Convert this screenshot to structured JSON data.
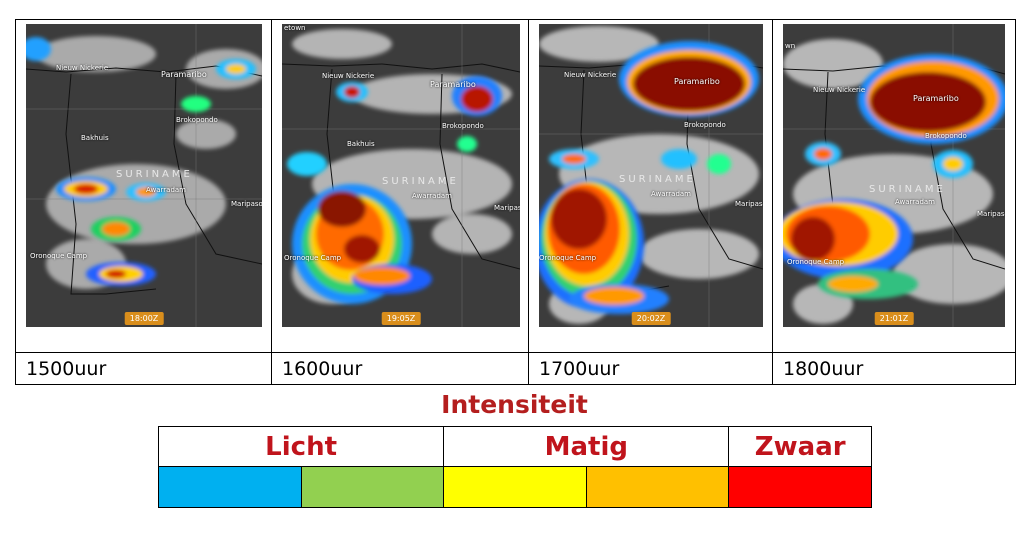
{
  "frames": [
    {
      "label": "1500uur",
      "time_badge": "18:00Z",
      "places": {
        "nieuw_nickerie": "Nieuw Nickerie",
        "paramaribo": "Paramaribo",
        "brokopondo": "Brokopondo",
        "bakhuis": "Bakhuis",
        "suriname": "SURINAME",
        "awarradam": "Awarradam",
        "oronoque": "Oronoque Camp",
        "maripasoula": ""
      }
    },
    {
      "label": "1600uur",
      "time_badge": "19:05Z",
      "places": {
        "nieuw_nickerie": "Nieuw Nickerie",
        "paramaribo": "Paramaribo",
        "brokopondo": "Brokopondo",
        "bakhuis": "Bakhuis",
        "suriname": "SURINAME",
        "awarradam": "Awarradam",
        "oronoque": "Oronoque Camp",
        "maripasoula": ""
      }
    },
    {
      "label": "1700uur",
      "time_badge": "20:02Z",
      "places": {
        "nieuw_nickerie": "Nieuw Nickerie",
        "paramaribo": "Paramaribo",
        "brokopondo": "Brokopondo",
        "bakhuis": "",
        "suriname": "SURINAME",
        "awarradam": "Awarradam",
        "oronoque": "Oronoque Camp",
        "maripasoula": "Maripasoula"
      }
    },
    {
      "label": "1800uur",
      "time_badge": "21:01Z",
      "places": {
        "nieuw_nickerie": "Nieuw Nickerie",
        "paramaribo": "Paramaribo",
        "brokopondo": "Brokopondo",
        "bakhuis": "",
        "suriname": "SURINAME",
        "awarradam": "Awarradam",
        "oronoque": "Oronoque Camp",
        "maripasoula": "Maripasoula"
      }
    }
  ],
  "frame1_extra": {
    "maripasoula": "Maripasoula"
  },
  "frame2_extra": {
    "georgetown": "etown",
    "maripasoula": "Maripasoula"
  },
  "frame4_extra": {
    "georgetown": "wn"
  },
  "legend": {
    "title": "Intensiteit",
    "categories": [
      "Licht",
      "Matig",
      "Zwaar"
    ],
    "colors": [
      "#00b0f0",
      "#92d050",
      "#ffff00",
      "#ffc000",
      "#ff0000"
    ]
  }
}
